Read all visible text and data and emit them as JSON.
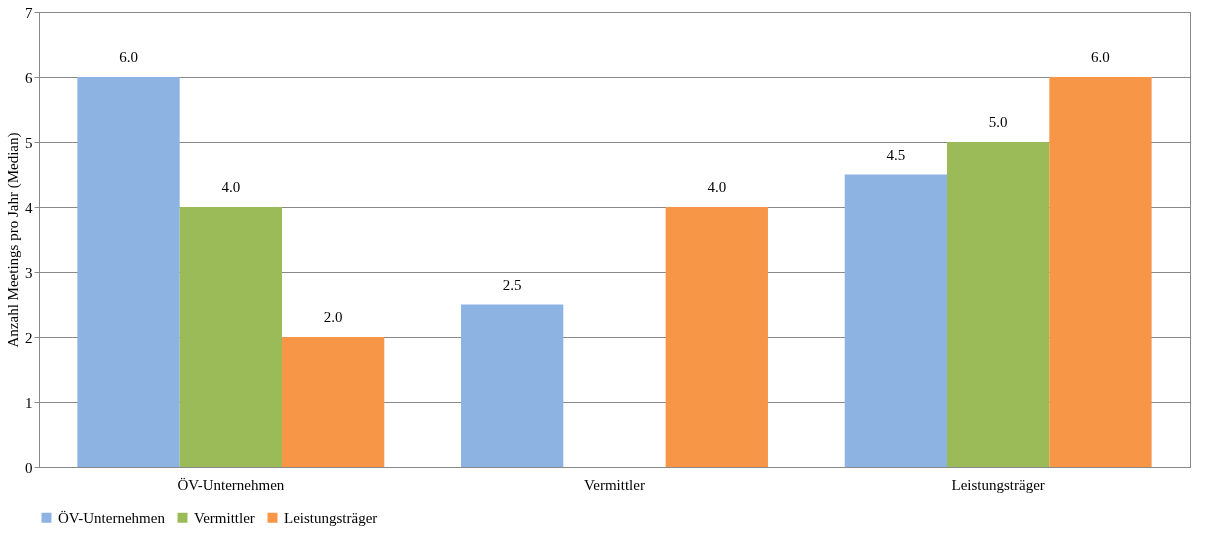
{
  "chart_data": {
    "type": "bar",
    "ylabel": "Anzahl Meetings pro Jahr (Median)",
    "categories": [
      "ÖV-Unternehmen",
      "Vermittler",
      "Leistungsträger"
    ],
    "series": [
      {
        "name": "ÖV-Unternehmen",
        "color": "#8db3e2",
        "values": [
          6.0,
          2.5,
          4.5
        ],
        "value_labels": [
          "6.0",
          "2.5",
          "4.5"
        ]
      },
      {
        "name": "Vermittler",
        "color": "#9bbb59",
        "values": [
          4.0,
          null,
          5.0
        ],
        "value_labels": [
          "4.0",
          null,
          "5.0"
        ]
      },
      {
        "name": "Leistungsträger",
        "color": "#f79646",
        "values": [
          2.0,
          4.0,
          6.0
        ],
        "value_labels": [
          "2.0",
          "4.0",
          "6.0"
        ]
      }
    ],
    "ylim": [
      0,
      7
    ],
    "yticks": [
      0,
      1,
      2,
      3,
      4,
      5,
      6,
      7
    ],
    "grid": "y",
    "legend": "bottom"
  }
}
